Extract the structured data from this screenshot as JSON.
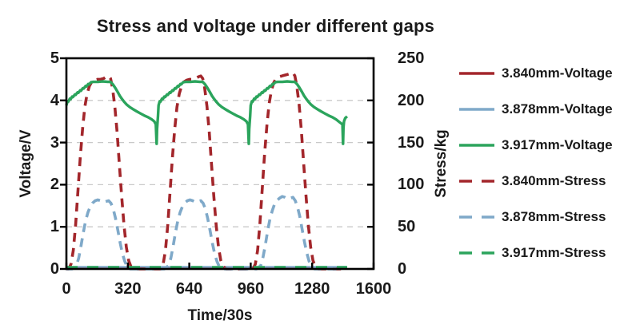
{
  "chart_data": {
    "type": "line",
    "title": "Stress and voltage under different gaps",
    "x_axis": {
      "label": "Time/30s",
      "min": 0,
      "max": 1600,
      "ticks": [
        0,
        320,
        640,
        960,
        1280,
        1600
      ]
    },
    "y_axis_left": {
      "label": "Voltage/V",
      "min": 0,
      "max": 5,
      "ticks": [
        0,
        1,
        2,
        3,
        4,
        5
      ]
    },
    "y_axis_right": {
      "label": "Stress/kg",
      "min": 0,
      "max": 250,
      "ticks": [
        0,
        50,
        100,
        150,
        200,
        250
      ]
    },
    "grid": {
      "horizontal_dashed": true,
      "color": "#c9c9c9"
    },
    "legend": {
      "position": "right"
    },
    "frame_color": "#000000",
    "draw_order": [
      0,
      1,
      3,
      4,
      5,
      2
    ],
    "series": [
      {
        "name": "3.840mm-Voltage",
        "axis": "left",
        "style": "solid",
        "color": "#A3262B",
        "stroke_width": 2.4,
        "points": [
          [
            0,
            0.02
          ],
          [
            1462,
            0.02
          ]
        ]
      },
      {
        "name": "3.878mm-Voltage",
        "axis": "left",
        "style": "solid",
        "color": "#7FA9C9",
        "stroke_width": 2.4,
        "points": [
          [
            0,
            0.05
          ],
          [
            1462,
            0.05
          ]
        ]
      },
      {
        "name": "3.917mm-Voltage",
        "axis": "left",
        "style": "solid",
        "color": "#2BA45C",
        "stroke_width": 3.4,
        "points": [
          [
            0,
            3.88
          ],
          [
            6,
            3.98
          ],
          [
            10,
            3.97
          ],
          [
            18,
            4.04
          ],
          [
            22,
            4.03
          ],
          [
            30,
            4.09
          ],
          [
            34,
            4.08
          ],
          [
            44,
            4.14
          ],
          [
            48,
            4.13
          ],
          [
            58,
            4.19
          ],
          [
            62,
            4.18
          ],
          [
            72,
            4.24
          ],
          [
            76,
            4.23
          ],
          [
            86,
            4.29
          ],
          [
            90,
            4.28
          ],
          [
            100,
            4.34
          ],
          [
            104,
            4.33
          ],
          [
            114,
            4.39
          ],
          [
            118,
            4.38
          ],
          [
            128,
            4.43
          ],
          [
            140,
            4.44
          ],
          [
            165,
            4.44
          ],
          [
            190,
            4.45
          ],
          [
            215,
            4.44
          ],
          [
            230,
            4.44
          ],
          [
            242,
            4.38
          ],
          [
            254,
            4.3
          ],
          [
            266,
            4.21
          ],
          [
            278,
            4.11
          ],
          [
            290,
            4.03
          ],
          [
            302,
            3.96
          ],
          [
            314,
            3.9
          ],
          [
            330,
            3.84
          ],
          [
            348,
            3.79
          ],
          [
            366,
            3.74
          ],
          [
            386,
            3.69
          ],
          [
            406,
            3.64
          ],
          [
            426,
            3.6
          ],
          [
            444,
            3.55
          ],
          [
            458,
            3.5
          ],
          [
            466,
            3.43
          ],
          [
            470,
            2.97
          ],
          [
            472,
            3.32
          ],
          [
            474,
            3.45
          ],
          [
            477,
            3.63
          ],
          [
            480,
            3.88
          ],
          [
            486,
            3.98
          ],
          [
            490,
            3.97
          ],
          [
            498,
            4.04
          ],
          [
            502,
            4.03
          ],
          [
            510,
            4.09
          ],
          [
            514,
            4.08
          ],
          [
            524,
            4.14
          ],
          [
            528,
            4.13
          ],
          [
            538,
            4.19
          ],
          [
            542,
            4.18
          ],
          [
            552,
            4.24
          ],
          [
            556,
            4.23
          ],
          [
            566,
            4.29
          ],
          [
            570,
            4.28
          ],
          [
            580,
            4.34
          ],
          [
            584,
            4.33
          ],
          [
            594,
            4.39
          ],
          [
            598,
            4.38
          ],
          [
            608,
            4.43
          ],
          [
            620,
            4.44
          ],
          [
            645,
            4.44
          ],
          [
            670,
            4.45
          ],
          [
            695,
            4.44
          ],
          [
            710,
            4.44
          ],
          [
            722,
            4.38
          ],
          [
            734,
            4.3
          ],
          [
            746,
            4.21
          ],
          [
            758,
            4.11
          ],
          [
            770,
            4.03
          ],
          [
            782,
            3.96
          ],
          [
            794,
            3.9
          ],
          [
            810,
            3.84
          ],
          [
            828,
            3.79
          ],
          [
            846,
            3.74
          ],
          [
            866,
            3.69
          ],
          [
            886,
            3.64
          ],
          [
            906,
            3.6
          ],
          [
            924,
            3.55
          ],
          [
            938,
            3.5
          ],
          [
            946,
            3.43
          ],
          [
            950,
            2.97
          ],
          [
            952,
            3.32
          ],
          [
            954,
            3.45
          ],
          [
            957,
            3.63
          ],
          [
            960,
            3.88
          ],
          [
            966,
            3.98
          ],
          [
            970,
            3.97
          ],
          [
            978,
            4.04
          ],
          [
            982,
            4.03
          ],
          [
            990,
            4.09
          ],
          [
            994,
            4.08
          ],
          [
            1004,
            4.14
          ],
          [
            1008,
            4.13
          ],
          [
            1018,
            4.19
          ],
          [
            1022,
            4.18
          ],
          [
            1032,
            4.24
          ],
          [
            1036,
            4.23
          ],
          [
            1046,
            4.29
          ],
          [
            1050,
            4.28
          ],
          [
            1060,
            4.34
          ],
          [
            1064,
            4.33
          ],
          [
            1074,
            4.39
          ],
          [
            1078,
            4.38
          ],
          [
            1088,
            4.43
          ],
          [
            1100,
            4.44
          ],
          [
            1125,
            4.44
          ],
          [
            1150,
            4.45
          ],
          [
            1175,
            4.44
          ],
          [
            1190,
            4.44
          ],
          [
            1202,
            4.38
          ],
          [
            1214,
            4.3
          ],
          [
            1226,
            4.21
          ],
          [
            1238,
            4.11
          ],
          [
            1250,
            4.03
          ],
          [
            1262,
            3.96
          ],
          [
            1274,
            3.9
          ],
          [
            1290,
            3.84
          ],
          [
            1308,
            3.79
          ],
          [
            1326,
            3.74
          ],
          [
            1346,
            3.69
          ],
          [
            1366,
            3.64
          ],
          [
            1386,
            3.6
          ],
          [
            1404,
            3.55
          ],
          [
            1418,
            3.5
          ],
          [
            1432,
            3.45
          ],
          [
            1438,
            3.42
          ],
          [
            1441,
            2.97
          ],
          [
            1443,
            3.35
          ],
          [
            1446,
            3.5
          ],
          [
            1452,
            3.58
          ],
          [
            1462,
            3.62
          ]
        ]
      },
      {
        "name": "3.840mm-Stress",
        "axis": "right",
        "style": "dashed",
        "color": "#A3262B",
        "stroke_width": 3.6,
        "points": [
          [
            0,
            0
          ],
          [
            12,
            0
          ],
          [
            24,
            6
          ],
          [
            36,
            22
          ],
          [
            48,
            52
          ],
          [
            60,
            92
          ],
          [
            72,
            132
          ],
          [
            84,
            166
          ],
          [
            96,
            192
          ],
          [
            108,
            208
          ],
          [
            120,
            217
          ],
          [
            132,
            222
          ],
          [
            146,
            224
          ],
          [
            162,
            225
          ],
          [
            178,
            225
          ],
          [
            194,
            226
          ],
          [
            208,
            228
          ],
          [
            220,
            229
          ],
          [
            230,
            226
          ],
          [
            240,
            215
          ],
          [
            252,
            193
          ],
          [
            264,
            162
          ],
          [
            276,
            124
          ],
          [
            288,
            86
          ],
          [
            300,
            52
          ],
          [
            312,
            26
          ],
          [
            324,
            10
          ],
          [
            336,
            3
          ],
          [
            352,
            0
          ],
          [
            470,
            0
          ],
          [
            492,
            0
          ],
          [
            504,
            6
          ],
          [
            516,
            22
          ],
          [
            528,
            52
          ],
          [
            540,
            92
          ],
          [
            552,
            132
          ],
          [
            564,
            166
          ],
          [
            576,
            192
          ],
          [
            588,
            208
          ],
          [
            600,
            217
          ],
          [
            612,
            222
          ],
          [
            626,
            224
          ],
          [
            642,
            225
          ],
          [
            658,
            225
          ],
          [
            674,
            226
          ],
          [
            688,
            228
          ],
          [
            700,
            229
          ],
          [
            710,
            226
          ],
          [
            720,
            215
          ],
          [
            732,
            193
          ],
          [
            744,
            162
          ],
          [
            756,
            124
          ],
          [
            768,
            86
          ],
          [
            780,
            52
          ],
          [
            792,
            26
          ],
          [
            804,
            10
          ],
          [
            816,
            3
          ],
          [
            832,
            0
          ],
          [
            950,
            0
          ],
          [
            972,
            0
          ],
          [
            984,
            6
          ],
          [
            996,
            22
          ],
          [
            1008,
            54
          ],
          [
            1020,
            95
          ],
          [
            1032,
            136
          ],
          [
            1044,
            170
          ],
          [
            1056,
            196
          ],
          [
            1068,
            212
          ],
          [
            1080,
            221
          ],
          [
            1092,
            226
          ],
          [
            1106,
            228
          ],
          [
            1122,
            229
          ],
          [
            1138,
            230
          ],
          [
            1154,
            231
          ],
          [
            1168,
            232
          ],
          [
            1180,
            233
          ],
          [
            1190,
            229
          ],
          [
            1200,
            217
          ],
          [
            1212,
            195
          ],
          [
            1224,
            163
          ],
          [
            1236,
            125
          ],
          [
            1248,
            87
          ],
          [
            1260,
            52
          ],
          [
            1272,
            26
          ],
          [
            1284,
            10
          ],
          [
            1296,
            3
          ],
          [
            1312,
            0
          ],
          [
            1430,
            0
          ]
        ]
      },
      {
        "name": "3.878mm-Stress",
        "axis": "right",
        "style": "dashed",
        "color": "#7FA9C9",
        "stroke_width": 3.6,
        "points": [
          [
            0,
            0
          ],
          [
            30,
            0
          ],
          [
            52,
            4
          ],
          [
            64,
            13
          ],
          [
            76,
            27
          ],
          [
            88,
            43
          ],
          [
            100,
            57
          ],
          [
            112,
            67
          ],
          [
            124,
            74
          ],
          [
            136,
            78
          ],
          [
            150,
            81
          ],
          [
            164,
            82
          ],
          [
            178,
            81
          ],
          [
            192,
            79
          ],
          [
            206,
            80
          ],
          [
            220,
            81
          ],
          [
            232,
            78
          ],
          [
            244,
            71
          ],
          [
            256,
            60
          ],
          [
            268,
            46
          ],
          [
            280,
            31
          ],
          [
            292,
            18
          ],
          [
            304,
            9
          ],
          [
            316,
            3
          ],
          [
            332,
            0
          ],
          [
            470,
            0
          ],
          [
            510,
            0
          ],
          [
            532,
            4
          ],
          [
            544,
            13
          ],
          [
            556,
            27
          ],
          [
            568,
            43
          ],
          [
            580,
            57
          ],
          [
            592,
            67
          ],
          [
            604,
            74
          ],
          [
            616,
            78
          ],
          [
            630,
            81
          ],
          [
            644,
            82
          ],
          [
            658,
            81
          ],
          [
            672,
            79
          ],
          [
            686,
            80
          ],
          [
            700,
            81
          ],
          [
            712,
            78
          ],
          [
            724,
            71
          ],
          [
            736,
            60
          ],
          [
            748,
            46
          ],
          [
            760,
            31
          ],
          [
            772,
            18
          ],
          [
            784,
            9
          ],
          [
            796,
            3
          ],
          [
            812,
            0
          ],
          [
            950,
            0
          ],
          [
            990,
            0
          ],
          [
            1012,
            4
          ],
          [
            1024,
            14
          ],
          [
            1036,
            28
          ],
          [
            1048,
            45
          ],
          [
            1060,
            59
          ],
          [
            1072,
            69
          ],
          [
            1084,
            77
          ],
          [
            1096,
            81
          ],
          [
            1110,
            84
          ],
          [
            1124,
            86
          ],
          [
            1138,
            85
          ],
          [
            1152,
            83
          ],
          [
            1166,
            84
          ],
          [
            1180,
            85
          ],
          [
            1192,
            81
          ],
          [
            1204,
            73
          ],
          [
            1216,
            62
          ],
          [
            1228,
            47
          ],
          [
            1240,
            32
          ],
          [
            1252,
            19
          ],
          [
            1264,
            9
          ],
          [
            1276,
            3
          ],
          [
            1292,
            0
          ],
          [
            1430,
            0
          ]
        ]
      },
      {
        "name": "3.917mm-Stress",
        "axis": "right",
        "style": "dashed",
        "color": "#2BA45C",
        "stroke_width": 4.2,
        "dash_pattern": "14,12",
        "points": [
          [
            0,
            1.5
          ],
          [
            1462,
            1.5
          ]
        ]
      }
    ]
  }
}
